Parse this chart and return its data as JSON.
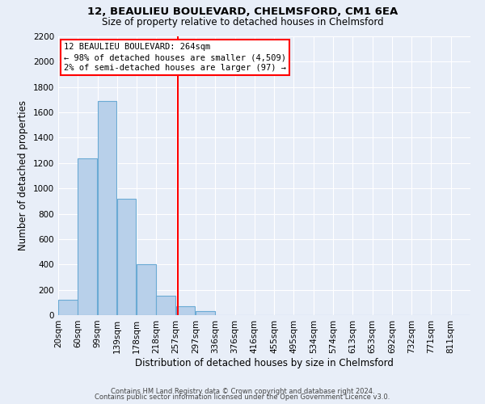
{
  "title1": "12, BEAULIEU BOULEVARD, CHELMSFORD, CM1 6EA",
  "title2": "Size of property relative to detached houses in Chelmsford",
  "xlabel": "Distribution of detached houses by size in Chelmsford",
  "ylabel": "Number of detached properties",
  "footer1": "Contains HM Land Registry data © Crown copyright and database right 2024.",
  "footer2": "Contains public sector information licensed under the Open Government Licence v3.0.",
  "bin_labels": [
    "20sqm",
    "60sqm",
    "99sqm",
    "139sqm",
    "178sqm",
    "218sqm",
    "257sqm",
    "297sqm",
    "336sqm",
    "376sqm",
    "416sqm",
    "455sqm",
    "495sqm",
    "534sqm",
    "574sqm",
    "613sqm",
    "653sqm",
    "692sqm",
    "732sqm",
    "771sqm",
    "811sqm"
  ],
  "bin_left_edges": [
    0,
    1,
    2,
    3,
    4,
    5,
    6,
    7,
    8,
    9,
    10,
    11,
    12,
    13,
    14,
    15,
    16,
    17,
    18,
    19,
    20
  ],
  "bar_heights": [
    120,
    1240,
    1690,
    920,
    400,
    150,
    70,
    30,
    0,
    0,
    0,
    0,
    0,
    0,
    0,
    0,
    0,
    0,
    0,
    0,
    0
  ],
  "property_line_x": 6.1,
  "annotation_title": "12 BEAULIEU BOULEVARD: 264sqm",
  "annotation_line1": "← 98% of detached houses are smaller (4,509)",
  "annotation_line2": "2% of semi-detached houses are larger (97) →",
  "bar_color": "#b8d0ea",
  "bar_edge_color": "#6aaad4",
  "line_color": "red",
  "background_color": "#e8eef8",
  "ylim": [
    0,
    2200
  ],
  "yticks": [
    0,
    200,
    400,
    600,
    800,
    1000,
    1200,
    1400,
    1600,
    1800,
    2000,
    2200
  ],
  "grid_color": "#ffffff",
  "title1_fontsize": 9.5,
  "title2_fontsize": 8.5,
  "xlabel_fontsize": 8.5,
  "ylabel_fontsize": 8.5,
  "tick_fontsize": 7.5,
  "footer_fontsize": 6.0
}
